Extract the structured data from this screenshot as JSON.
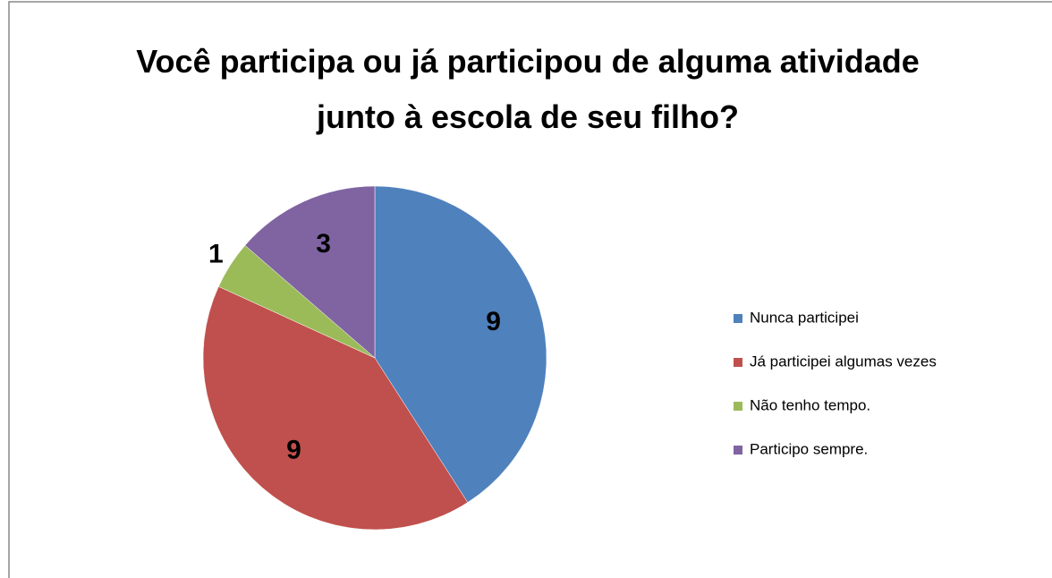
{
  "chart_data": {
    "type": "pie",
    "title": "Você participa ou já participou de alguma atividade  junto à escola de seu filho?",
    "categories": [
      "Nunca participei",
      "Já participei algumas vezes",
      "Não tenho tempo.",
      "Participo sempre."
    ],
    "values": [
      9,
      9,
      1,
      3
    ],
    "colors": [
      "#4f81bd",
      "#c0504d",
      "#9bbb59",
      "#8064a2"
    ],
    "legend": "right"
  }
}
